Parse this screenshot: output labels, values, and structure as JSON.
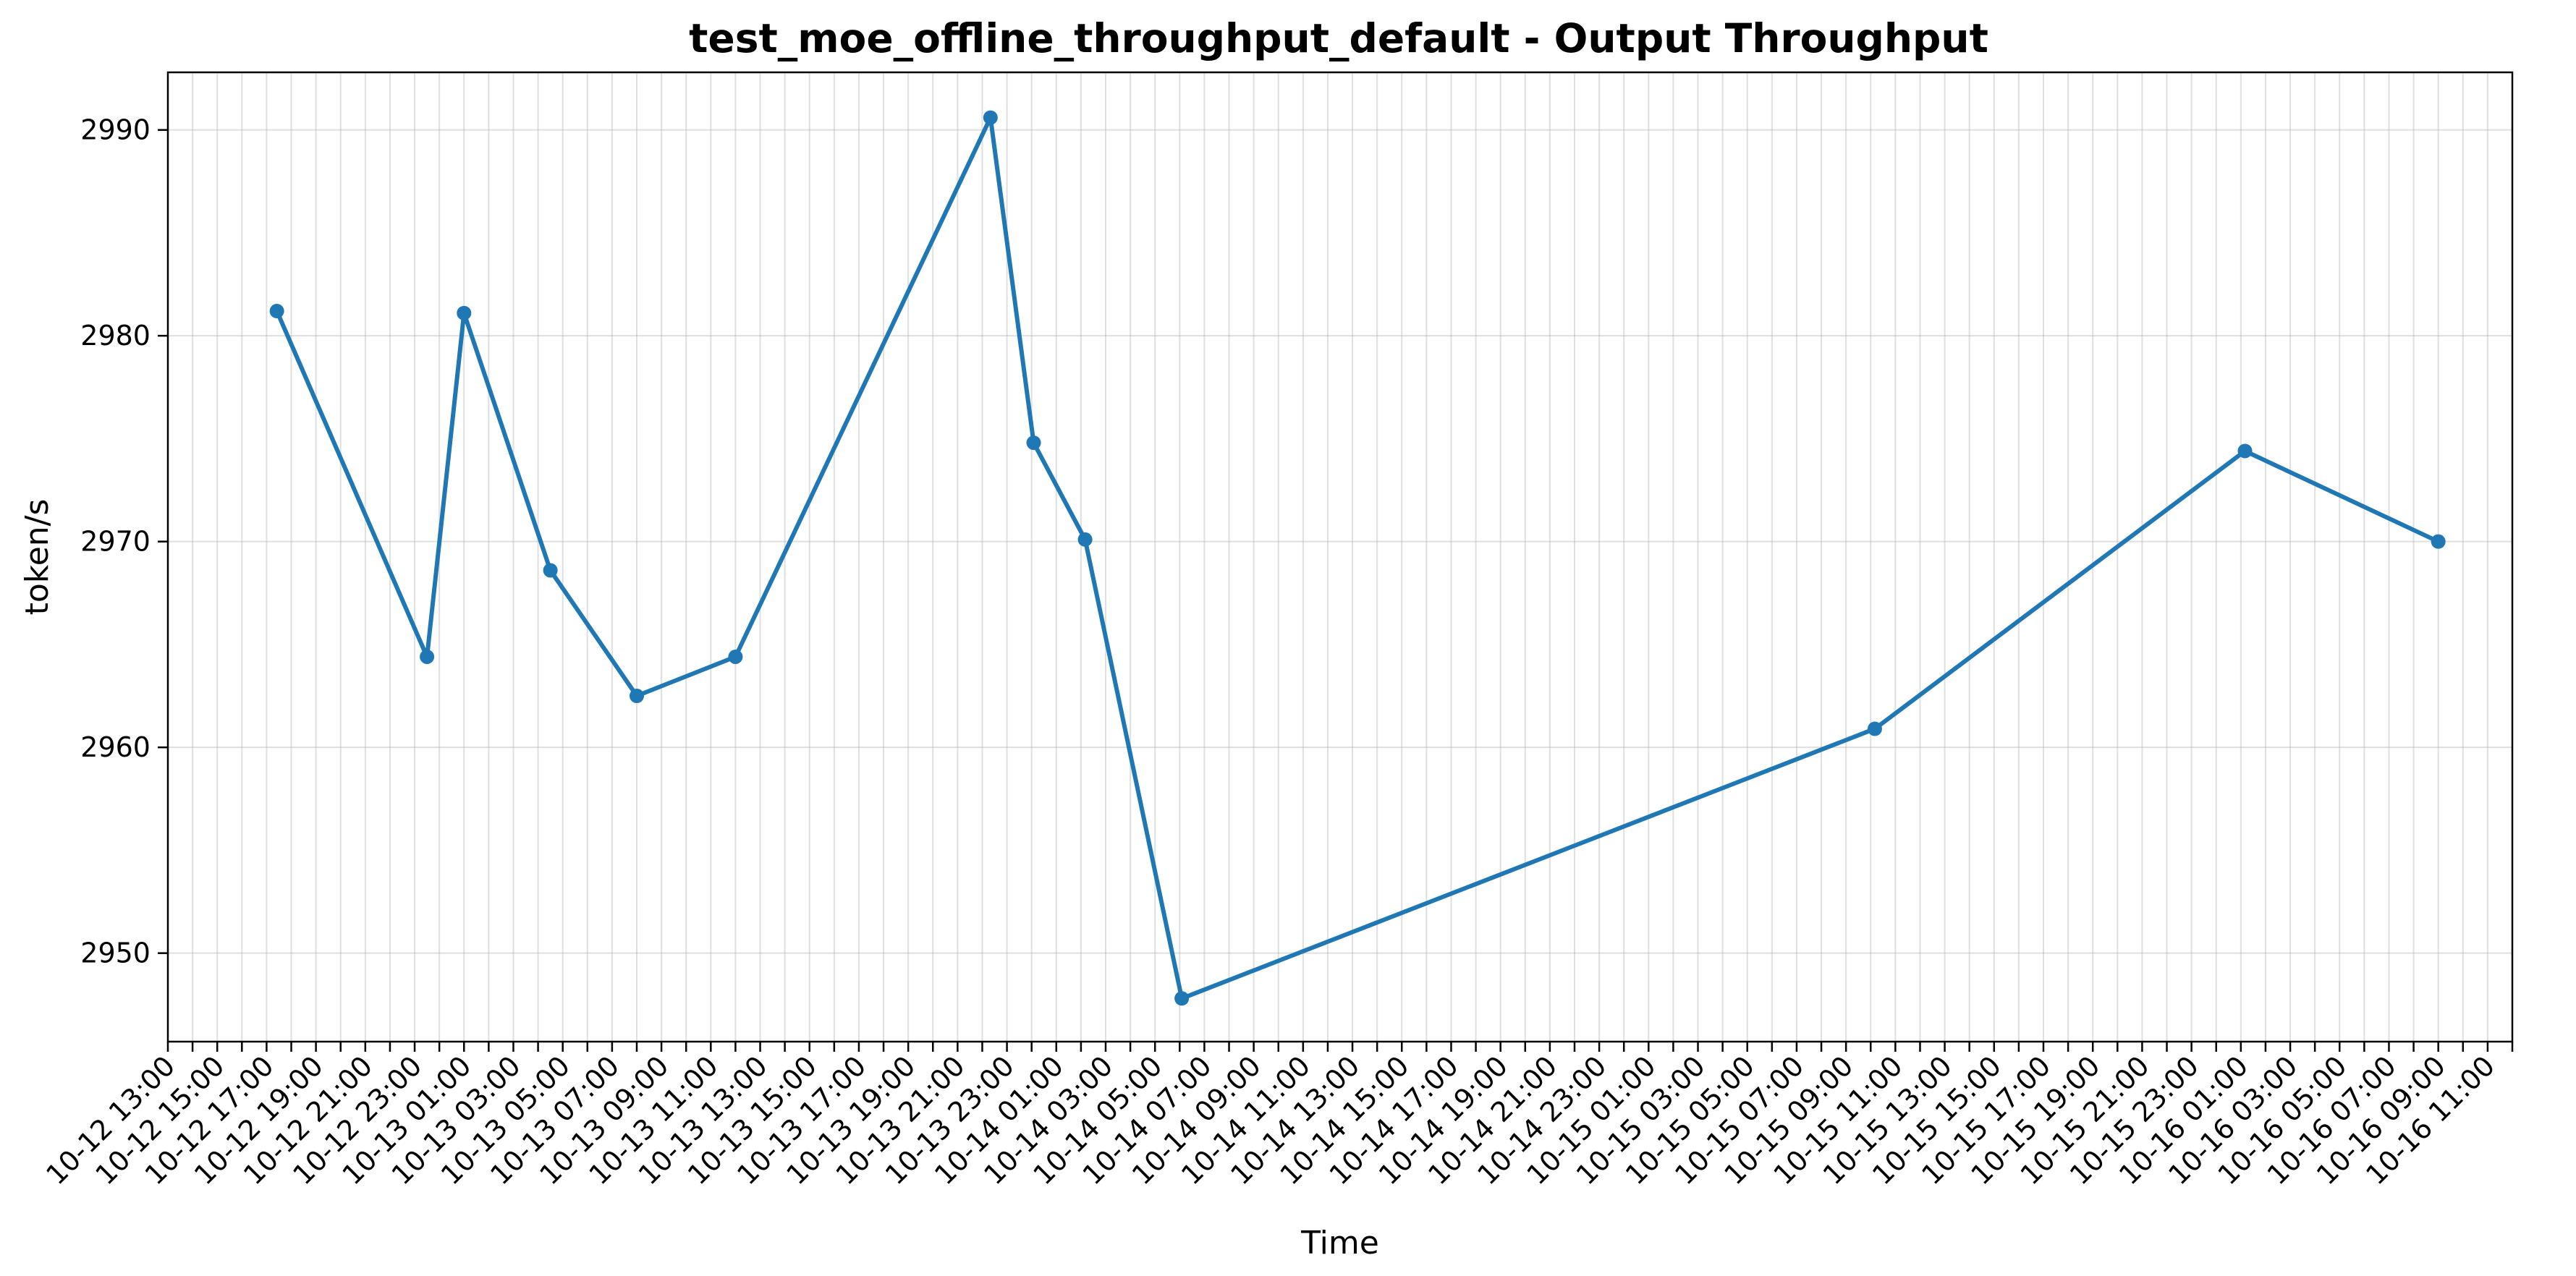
{
  "chart_data": {
    "type": "line",
    "title": "test_moe_offline_throughput_default - Output Throughput",
    "xlabel": "Time",
    "ylabel": "token/s",
    "x_range": [
      "10-12 13:00",
      "10-16 12:00"
    ],
    "ylim": [
      2945.7,
      2992.8
    ],
    "y_ticks": [
      2950,
      2960,
      2970,
      2980,
      2990
    ],
    "x_tick_interval_hours": 1,
    "x_tick_label_every_hours": 2,
    "grid": true,
    "legend": "none",
    "series": [
      {
        "color": "#1f77b4",
        "points": [
          {
            "x": "10-12 17:25",
            "y": 2981.2
          },
          {
            "x": "10-12 23:30",
            "y": 2964.4
          },
          {
            "x": "10-13 01:00",
            "y": 2981.1
          },
          {
            "x": "10-13 04:30",
            "y": 2968.6
          },
          {
            "x": "10-13 08:00",
            "y": 2962.5
          },
          {
            "x": "10-13 12:00",
            "y": 2964.4
          },
          {
            "x": "10-13 22:20",
            "y": 2990.6
          },
          {
            "x": "10-14 00:05",
            "y": 2974.8
          },
          {
            "x": "10-14 02:10",
            "y": 2970.1
          },
          {
            "x": "10-14 06:05",
            "y": 2947.8
          },
          {
            "x": "10-15 10:10",
            "y": 2960.9
          },
          {
            "x": "10-16 01:10",
            "y": 2974.4
          },
          {
            "x": "10-16 09:00",
            "y": 2970.0
          }
        ]
      }
    ]
  }
}
